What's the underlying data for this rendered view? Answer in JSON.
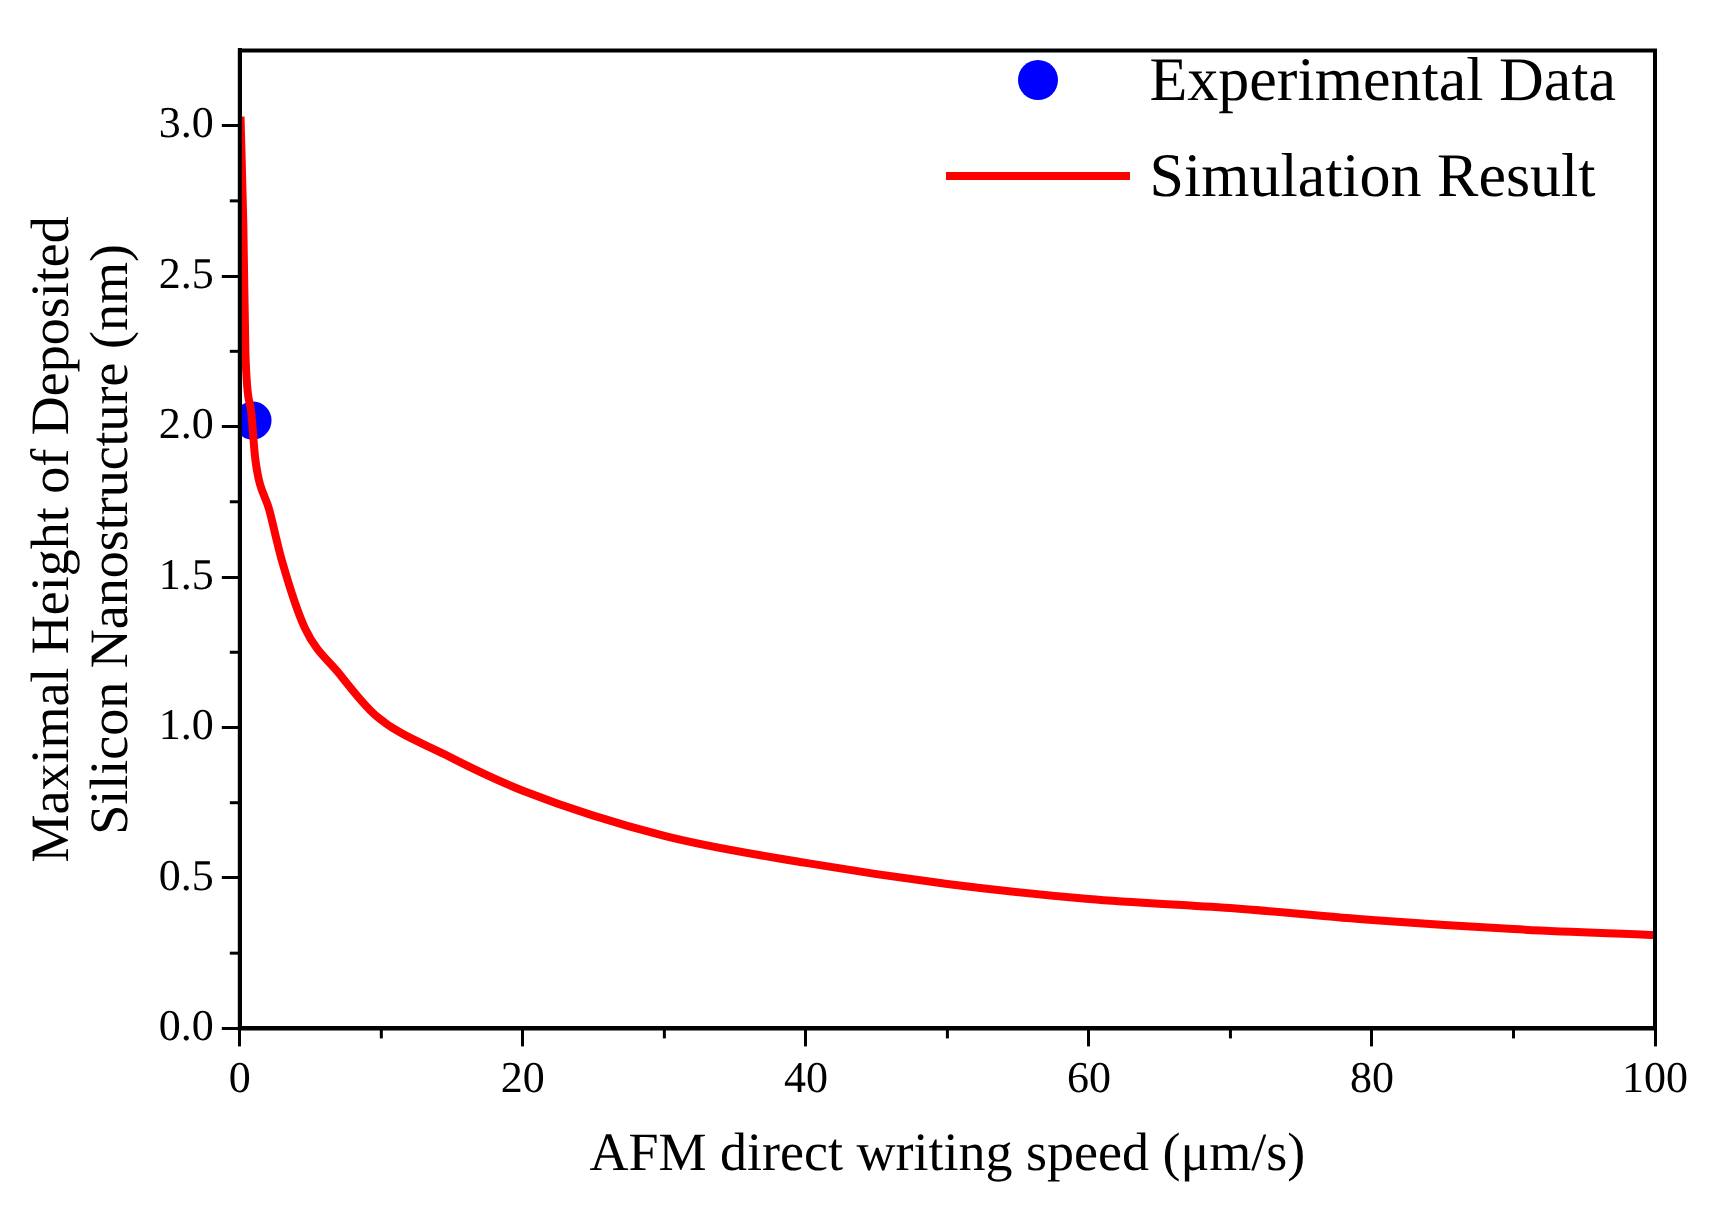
{
  "chart_data": {
    "type": "line",
    "xlabel": "AFM direct writing speed (μm/s)",
    "ylabel": "Maximal Height of Deposited\nSilicon Nanostructure (nm)",
    "xlim": [
      0,
      100
    ],
    "xticks": [
      0,
      20,
      40,
      60,
      80,
      100
    ],
    "ylim": [
      0,
      3.25
    ],
    "yticks": [
      {
        "value": 0,
        "label": "0.0"
      },
      {
        "value": 0.5,
        "label": "0.5"
      },
      {
        "value": 1,
        "label": "1.0"
      },
      {
        "value": 1.5,
        "label": "1.5"
      },
      {
        "value": 2,
        "label": "2.0"
      },
      {
        "value": 2.5,
        "label": "2.5"
      },
      {
        "value": 3,
        "label": "3.0"
      }
    ],
    "grid": false,
    "legend": "top right",
    "series": [
      {
        "name": "Experimental Data",
        "type": "scatter",
        "marker": "circle",
        "color": "#0000ff",
        "x": [
          0.9
        ],
        "values": [
          2.02
        ]
      },
      {
        "name": "Simulation Result",
        "marker": "none",
        "line_style": "solid",
        "color": "#ff0000",
        "x": [
          0.05,
          0.25,
          0.4,
          0.8,
          1.1,
          2.1,
          3,
          4.6,
          7,
          9.6,
          14.5,
          20,
          30,
          40,
          50,
          60,
          70,
          80,
          90,
          100
        ],
        "values": [
          3.03,
          2.67,
          2.24,
          2.05,
          1.89,
          1.72,
          1.55,
          1.33,
          1.18,
          1.04,
          0.91,
          0.79,
          0.64,
          0.55,
          0.48,
          0.43,
          0.4,
          0.36,
          0.33,
          0.31
        ]
      }
    ]
  }
}
